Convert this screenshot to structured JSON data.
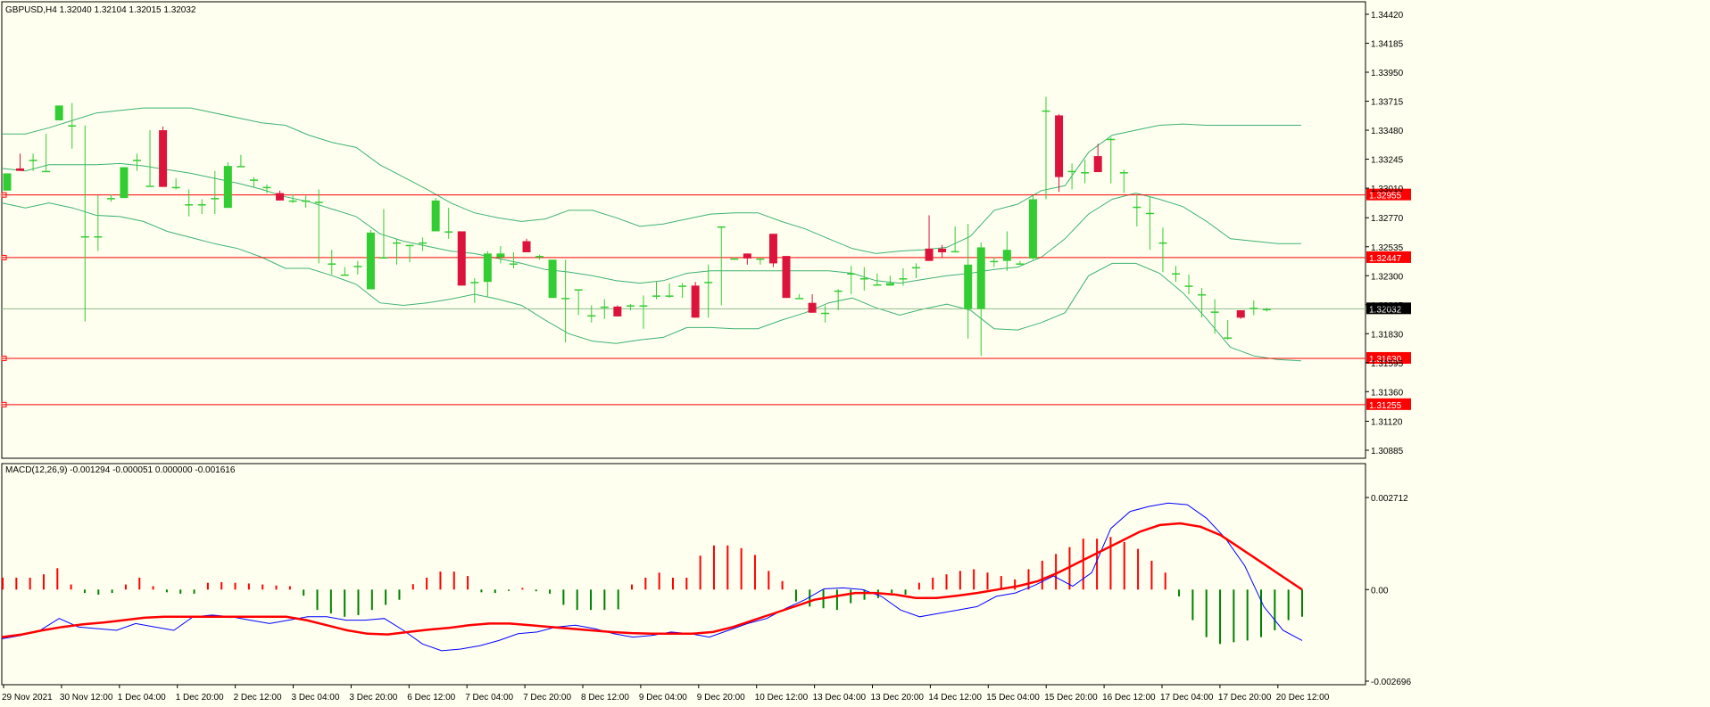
{
  "header": {
    "symbol_text": "GBPUSD,H4  1.32040 1.32104 1.32015 1.32032"
  },
  "macd_header": {
    "text": "MACD(12,26,9) -0.001294 -0.000051 0.000000 -0.001616"
  },
  "colors": {
    "background": "#FFFFF0",
    "bull": "#32CD32",
    "bear": "#DC143C",
    "bands": "#3CB371",
    "levels": "#FF0000",
    "macd_line": "#0000FF",
    "signal_line": "#FF0000",
    "hist_pos": "#FF0000",
    "hist_neg": "#008000"
  },
  "chart_data": [
    {
      "type": "candlestick",
      "title": "GBPUSD,H4",
      "ylim": [
        1.30885,
        1.3442
      ],
      "y_ticks": [
        "1.34420",
        "1.34185",
        "1.33950",
        "1.33715",
        "1.33480",
        "1.33245",
        "1.33010",
        "1.32770",
        "1.32535",
        "1.32300",
        "1.32065",
        "1.31830",
        "1.31595",
        "1.31360",
        "1.31120",
        "1.30885"
      ],
      "x_ticks": [
        "29 Nov 2021",
        "30 Nov 12:00",
        "1 Dec 04:00",
        "1 Dec 20:00",
        "2 Dec 12:00",
        "3 Dec 04:00",
        "3 Dec 20:00",
        "6 Dec 12:00",
        "7 Dec 04:00",
        "7 Dec 20:00",
        "8 Dec 12:00",
        "9 Dec 04:00",
        "9 Dec 20:00",
        "10 Dec 12:00",
        "13 Dec 04:00",
        "13 Dec 20:00",
        "14 Dec 12:00",
        "15 Dec 04:00",
        "15 Dec 20:00",
        "16 Dec 12:00",
        "17 Dec 04:00",
        "17 Dec 20:00",
        "20 Dec 12:00"
      ],
      "price_levels": [
        {
          "label": "1.32955",
          "value": 1.32955
        },
        {
          "label": "1.32447",
          "value": 1.32447
        },
        {
          "label": "1.31630",
          "value": 1.3163
        },
        {
          "label": "1.31255",
          "value": 1.31255
        }
      ],
      "current_price": {
        "label": "1.32032",
        "value": 1.32032
      },
      "candles": [
        [
          1.3299,
          1.3313,
          1.3301,
          1.3304
        ],
        [
          1.3317,
          1.3315,
          1.3329,
          1.3318
        ],
        [
          1.3324,
          1.3324,
          1.3329,
          1.3315
        ],
        [
          1.3315,
          1.3315,
          1.3345,
          1.3315
        ],
        [
          1.3356,
          1.3368,
          1.3356,
          1.3375
        ],
        [
          1.3352,
          1.3352,
          1.337,
          1.3333
        ],
        [
          1.3262,
          1.3262,
          1.3352,
          1.3193
        ],
        [
          1.3262,
          1.3262,
          1.3295,
          1.325
        ],
        [
          1.3293,
          1.3293,
          1.3296,
          1.329
        ],
        [
          1.3293,
          1.3318,
          1.3293,
          1.3293
        ],
        [
          1.3324,
          1.3324,
          1.3329,
          1.3315
        ],
        [
          1.3303,
          1.3303,
          1.3348,
          1.3303
        ],
        [
          1.3348,
          1.3302,
          1.3351,
          1.3302
        ],
        [
          1.3302,
          1.3302,
          1.3309,
          1.33
        ],
        [
          1.3288,
          1.3288,
          1.33,
          1.3278
        ],
        [
          1.3288,
          1.3288,
          1.3292,
          1.328
        ],
        [
          1.3293,
          1.3293,
          1.3315,
          1.328
        ],
        [
          1.3285,
          1.3319,
          1.3322,
          1.3285
        ],
        [
          1.3319,
          1.3319,
          1.3328,
          1.3319
        ],
        [
          1.3308,
          1.3308,
          1.331,
          1.3302
        ],
        [
          1.3302,
          1.3302,
          1.3304,
          1.3297
        ],
        [
          1.3297,
          1.3291,
          1.3299,
          1.3291
        ],
        [
          1.3291,
          1.3291,
          1.3296,
          1.3289
        ],
        [
          1.3291,
          1.3291,
          1.3295,
          1.3285
        ],
        [
          1.329,
          1.329,
          1.33,
          1.324
        ],
        [
          1.324,
          1.324,
          1.3251,
          1.3231
        ],
        [
          1.3231,
          1.3231,
          1.3237,
          1.3231
        ],
        [
          1.3238,
          1.3238,
          1.3242,
          1.3231
        ],
        [
          1.3219,
          1.3265,
          1.3267,
          1.3219
        ],
        [
          1.3245,
          1.3245,
          1.3284,
          1.3245
        ],
        [
          1.3257,
          1.3257,
          1.326,
          1.3239
        ],
        [
          1.3255,
          1.3255,
          1.3255,
          1.3241
        ],
        [
          1.3257,
          1.3257,
          1.3261,
          1.325
        ],
        [
          1.3266,
          1.3291,
          1.3293,
          1.3266
        ],
        [
          1.3266,
          1.3266,
          1.3285,
          1.326
        ],
        [
          1.3266,
          1.3222,
          1.3266,
          1.3222
        ],
        [
          1.3225,
          1.3225,
          1.3228,
          1.3208
        ],
        [
          1.3225,
          1.3248,
          1.325,
          1.3213
        ],
        [
          1.3245,
          1.3248,
          1.3254,
          1.324
        ],
        [
          1.324,
          1.324,
          1.3249,
          1.3236
        ],
        [
          1.3258,
          1.3249,
          1.326,
          1.3249
        ],
        [
          1.3246,
          1.3246,
          1.3247,
          1.3243
        ],
        [
          1.3212,
          1.3243,
          1.3212,
          1.3243
        ],
        [
          1.3212,
          1.3212,
          1.3243,
          1.3176
        ],
        [
          1.3219,
          1.3219,
          1.3219,
          1.3198
        ],
        [
          1.3198,
          1.3198,
          1.3206,
          1.3192
        ],
        [
          1.3205,
          1.3205,
          1.3211,
          1.3195
        ],
        [
          1.3205,
          1.3197,
          1.3206,
          1.3197
        ],
        [
          1.3205,
          1.3206,
          1.3207,
          1.3202
        ],
        [
          1.3206,
          1.3206,
          1.3214,
          1.3187
        ],
        [
          1.3214,
          1.3214,
          1.3225,
          1.3211
        ],
        [
          1.3214,
          1.3214,
          1.3224,
          1.3212
        ],
        [
          1.3222,
          1.3222,
          1.3224,
          1.3212
        ],
        [
          1.3222,
          1.3196,
          1.3225,
          1.3196
        ],
        [
          1.3225,
          1.3225,
          1.3239,
          1.3196
        ],
        [
          1.327,
          1.327,
          1.327,
          1.3206
        ],
        [
          1.3244,
          1.3244,
          1.3245,
          1.3244
        ],
        [
          1.3248,
          1.3244,
          1.3248,
          1.3239
        ],
        [
          1.3244,
          1.3244,
          1.3244,
          1.3239
        ],
        [
          1.3264,
          1.324,
          1.3264,
          1.3237
        ],
        [
          1.3246,
          1.3212,
          1.3246,
          1.3212
        ],
        [
          1.3212,
          1.3212,
          1.3215,
          1.3212
        ],
        [
          1.3208,
          1.32,
          1.3215,
          1.32
        ],
        [
          1.32,
          1.32,
          1.3206,
          1.3192
        ],
        [
          1.3218,
          1.3218,
          1.3219,
          1.3202
        ],
        [
          1.3232,
          1.3232,
          1.3238,
          1.3215
        ],
        [
          1.3228,
          1.3228,
          1.3237,
          1.3218
        ],
        [
          1.3223,
          1.3223,
          1.3232,
          1.3222
        ],
        [
          1.3222,
          1.3224,
          1.323,
          1.3222
        ],
        [
          1.3228,
          1.3228,
          1.3236,
          1.3222
        ],
        [
          1.3237,
          1.3237,
          1.324,
          1.3228
        ],
        [
          1.3252,
          1.3242,
          1.3279,
          1.3242
        ],
        [
          1.3252,
          1.3249,
          1.3255,
          1.3245
        ],
        [
          1.325,
          1.325,
          1.327,
          1.325
        ],
        [
          1.3203,
          1.3239,
          1.3272,
          1.3179
        ],
        [
          1.3203,
          1.3253,
          1.3257,
          1.3165
        ],
        [
          1.3242,
          1.3242,
          1.3245,
          1.3237
        ],
        [
          1.3242,
          1.3251,
          1.3266,
          1.3234
        ],
        [
          1.324,
          1.324,
          1.3242,
          1.324
        ],
        [
          1.3244,
          1.3292,
          1.3295,
          1.3243
        ],
        [
          1.3364,
          1.3364,
          1.3375,
          1.3292
        ],
        [
          1.336,
          1.331,
          1.3361,
          1.3298
        ],
        [
          1.3315,
          1.3315,
          1.3321,
          1.33
        ],
        [
          1.3314,
          1.3314,
          1.3324,
          1.3305
        ],
        [
          1.3327,
          1.3314,
          1.3337,
          1.3314
        ],
        [
          1.3341,
          1.3341,
          1.3342,
          1.3305
        ],
        [
          1.3314,
          1.3314,
          1.3316,
          1.3297
        ],
        [
          1.3286,
          1.3286,
          1.3295,
          1.327
        ],
        [
          1.3281,
          1.3281,
          1.3294,
          1.3251
        ],
        [
          1.3257,
          1.3257,
          1.3269,
          1.3233
        ],
        [
          1.3232,
          1.3232,
          1.3238,
          1.3225
        ],
        [
          1.3222,
          1.3222,
          1.3231,
          1.3215
        ],
        [
          1.3215,
          1.3215,
          1.322,
          1.3196
        ],
        [
          1.3201,
          1.3201,
          1.3211,
          1.3183
        ],
        [
          1.318,
          1.318,
          1.3194,
          1.3178
        ],
        [
          1.3202,
          1.3196,
          1.3202,
          1.3195
        ],
        [
          1.3204,
          1.3204,
          1.321,
          1.3198
        ],
        [
          1.3203,
          1.3203,
          1.3204,
          1.3201
        ]
      ],
      "bollinger": {
        "upper": [
          1.3345,
          1.3345,
          1.335,
          1.3356,
          1.3362,
          1.3364,
          1.3366,
          1.3366,
          1.3366,
          1.3362,
          1.3358,
          1.3354,
          1.3352,
          1.3344,
          1.3338,
          1.3334,
          1.332,
          1.331,
          1.33,
          1.3289,
          1.3281,
          1.3277,
          1.3274,
          1.3276,
          1.3283,
          1.3283,
          1.3277,
          1.327,
          1.3272,
          1.3276,
          1.328,
          1.3281,
          1.3281,
          1.3274,
          1.3268,
          1.326,
          1.3252,
          1.3248,
          1.325,
          1.3251,
          1.3253,
          1.3262,
          1.3283,
          1.3288,
          1.3299,
          1.3303,
          1.333,
          1.3344,
          1.3348,
          1.3352,
          1.3353,
          1.3352,
          1.3352,
          1.3352,
          1.3352,
          1.3352
        ],
        "middle": [
          1.3317,
          1.3315,
          1.332,
          1.332,
          1.332,
          1.3321,
          1.3319,
          1.3316,
          1.3313,
          1.3309,
          1.3305,
          1.33,
          1.3294,
          1.329,
          1.3284,
          1.3278,
          1.3264,
          1.3258,
          1.3254,
          1.325,
          1.3248,
          1.3244,
          1.324,
          1.3235,
          1.3233,
          1.323,
          1.3226,
          1.3224,
          1.3226,
          1.3232,
          1.3234,
          1.3234,
          1.3234,
          1.3234,
          1.3234,
          1.3234,
          1.3232,
          1.3226,
          1.3224,
          1.3227,
          1.323,
          1.3232,
          1.3235,
          1.3237,
          1.3245,
          1.326,
          1.328,
          1.3292,
          1.3297,
          1.3292,
          1.3286,
          1.3274,
          1.326,
          1.3258,
          1.3256,
          1.3256
        ],
        "lower": [
          1.3289,
          1.3285,
          1.3289,
          1.3285,
          1.3279,
          1.3278,
          1.3274,
          1.3266,
          1.3261,
          1.3256,
          1.3252,
          1.3245,
          1.3236,
          1.3236,
          1.323,
          1.3223,
          1.3208,
          1.3206,
          1.3208,
          1.3211,
          1.3215,
          1.3211,
          1.3206,
          1.3194,
          1.3183,
          1.3177,
          1.3175,
          1.3178,
          1.318,
          1.3188,
          1.3188,
          1.3187,
          1.3187,
          1.3194,
          1.32,
          1.3208,
          1.3212,
          1.3204,
          1.3198,
          1.3203,
          1.3207,
          1.3202,
          1.3187,
          1.3186,
          1.3192,
          1.32,
          1.323,
          1.324,
          1.324,
          1.3232,
          1.3216,
          1.3195,
          1.3172,
          1.3165,
          1.3162,
          1.3161
        ]
      }
    },
    {
      "type": "macd",
      "title": "MACD(12,26,9)",
      "ylim": [
        -0.002696,
        0.002712
      ],
      "y_ticks": [
        "0.002712",
        "0.00",
        "-0.002696"
      ],
      "histogram": [
        0.00035,
        0.00035,
        0.00035,
        0.00045,
        0.00063,
        0.00015,
        -0.0001,
        -0.00015,
        -0.0001,
        0.00015,
        0.00035,
        0.0001,
        -8e-05,
        -0.00012,
        -0.00012,
        0.0002,
        0.00022,
        0.0002,
        0.00018,
        0.00015,
        0.00012,
        0.0001,
        -0.00018,
        -0.0006,
        -0.0007,
        -0.0008,
        -0.00075,
        -0.0006,
        -0.00045,
        -0.0003,
        0.00016,
        0.00035,
        0.00053,
        0.00053,
        0.0004,
        -8e-05,
        -0.0001,
        -4e-05,
        5e-05,
        -5e-05,
        -0.00012,
        -0.00045,
        -0.0006,
        -0.0006,
        -0.0006,
        -0.00058,
        0.00015,
        0.00035,
        0.0005,
        0.00035,
        0.00035,
        0.001,
        0.0013,
        0.0013,
        0.00122,
        0.00102,
        0.00055,
        0.00025,
        -0.00035,
        -0.0005,
        -0.00055,
        -0.0006,
        -0.0004,
        -0.0003,
        -0.00025,
        -0.0001,
        -0.00015,
        0.0002,
        0.00035,
        0.00045,
        0.00055,
        0.0006,
        0.0005,
        0.0004,
        0.0003,
        0.0006,
        0.00085,
        0.00105,
        0.00125,
        0.0015,
        0.0015,
        0.00155,
        0.0014,
        0.0012,
        0.00085,
        0.0005,
        -0.0002,
        -0.0009,
        -0.0014,
        -0.0016,
        -0.00155,
        -0.0015,
        -0.0014,
        -0.0012,
        -0.0009,
        -0.0008
      ],
      "macd_line": [
        -0.00145,
        -0.00135,
        -0.0012,
        -0.00085,
        -0.0011,
        -0.00115,
        -0.0012,
        -0.001,
        -0.0011,
        -0.0012,
        -0.0008,
        -0.00075,
        -0.0008,
        -0.0009,
        -0.001,
        -0.0009,
        -0.0008,
        -0.0008,
        -0.0009,
        -0.0009,
        -0.00085,
        -0.0012,
        -0.0016,
        -0.0018,
        -0.00175,
        -0.00165,
        -0.0015,
        -0.0013,
        -0.00125,
        -0.0011,
        -0.00105,
        -0.00115,
        -0.0013,
        -0.0014,
        -0.00135,
        -0.00125,
        -0.0013,
        -0.0014,
        -0.0012,
        -0.001,
        -0.00085,
        -0.00055,
        -0.0003,
        2e-05,
        5e-05,
        0.0,
        -0.0002,
        -0.0006,
        -0.0008,
        -0.0007,
        -0.0006,
        -0.0005,
        -0.0002,
        -0.0001,
        0.00012,
        0.0004,
        0.0001,
        0.0005,
        0.0018,
        0.0023,
        0.00245,
        0.00255,
        0.0025,
        0.0021,
        0.0015,
        0.0007,
        -0.0005,
        -0.0012,
        -0.0015
      ],
      "signal_line": [
        -0.0014,
        -0.00132,
        -0.0012,
        -0.0011,
        -0.00102,
        -0.00097,
        -0.0009,
        -0.00083,
        -0.0008,
        -0.0008,
        -0.0008,
        -0.0008,
        -0.0008,
        -0.0008,
        -0.0008,
        -0.0009,
        -0.00105,
        -0.0012,
        -0.0013,
        -0.00132,
        -0.00125,
        -0.00118,
        -0.00113,
        -0.00105,
        -0.001,
        -0.001,
        -0.00105,
        -0.0011,
        -0.00115,
        -0.0012,
        -0.00125,
        -0.00128,
        -0.0013,
        -0.0013,
        -0.0013,
        -0.00125,
        -0.0011,
        -0.0009,
        -0.0007,
        -0.0005,
        -0.0003,
        -0.0002,
        -0.0001,
        -0.0001,
        -0.00015,
        -0.00025,
        -0.00025,
        -0.00018,
        -0.0001,
        0.0,
        0.0001,
        0.00025,
        0.0005,
        0.0008,
        0.0011,
        0.0014,
        0.0017,
        0.0019,
        0.00195,
        0.00185,
        0.0016,
        0.0012,
        0.0008,
        0.0004,
        0.0
      ]
    }
  ]
}
